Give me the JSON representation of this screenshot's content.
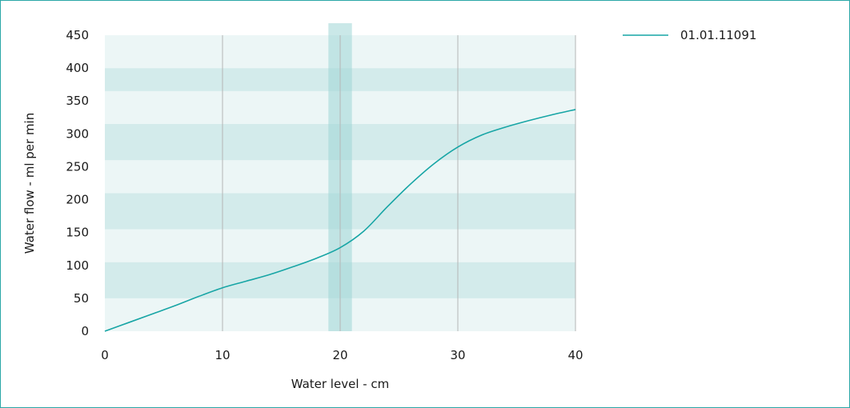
{
  "chart_data": {
    "type": "line",
    "xlabel": "Water level - cm",
    "ylabel": "Water flow - ml per min",
    "xlim": [
      0,
      40
    ],
    "ylim": [
      0,
      450
    ],
    "x_ticks": [
      "0",
      "10",
      "20",
      "30",
      "40"
    ],
    "y_ticks": [
      "0",
      "50",
      "100",
      "150",
      "200",
      "250",
      "300",
      "350",
      "400",
      "450"
    ],
    "highlight_x_range": [
      19,
      21
    ],
    "legend_position": "top-right",
    "series": [
      {
        "name": "01.01.11091",
        "color": "#17a5a5",
        "x": [
          0,
          2,
          4,
          6,
          8,
          10,
          12,
          14,
          16,
          18,
          20,
          22,
          24,
          26,
          28,
          30,
          32,
          34,
          36,
          38,
          40
        ],
        "y": [
          0,
          13,
          26,
          39,
          53,
          66,
          76,
          86,
          98,
          111,
          127,
          152,
          189,
          224,
          255,
          280,
          298,
          310,
          320,
          329,
          337
        ]
      }
    ]
  },
  "style": {
    "plot_bg_light": "#ecf6f6",
    "plot_bg_dark": "#d3ebeb",
    "highlight_color": "#9fd5d5",
    "gridline_color": "#b5b5b5",
    "frame_color": "#2aa7a7"
  }
}
